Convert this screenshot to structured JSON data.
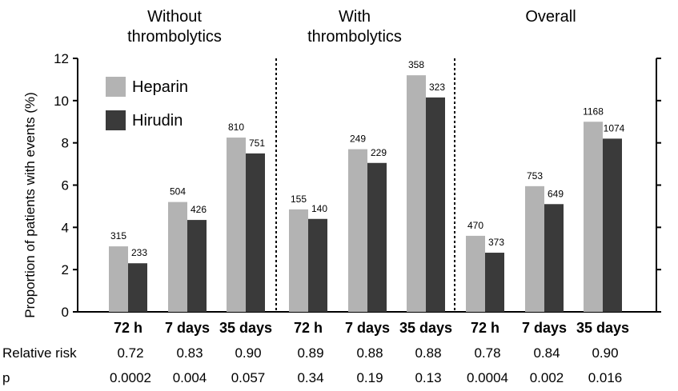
{
  "chart_data": {
    "type": "bar",
    "ylabel": "Proportion of patients with events (%)",
    "ylim": [
      0,
      12
    ],
    "yticks": [
      "0",
      "2",
      "4",
      "6",
      "8",
      "10",
      "12"
    ],
    "legend_position": "top-left",
    "series": [
      {
        "name": "Heparin",
        "color": "#b3b3b3"
      },
      {
        "name": "Hirudin",
        "color": "#3a3a3a"
      }
    ],
    "groups": [
      {
        "title_lines": [
          "Without",
          "thrombolytics"
        ],
        "categories": [
          {
            "label": "72 h",
            "values": [
              3.1,
              2.3
            ],
            "counts": [
              "315",
              "233"
            ],
            "relative_risk": "0.72",
            "p": "0.0002"
          },
          {
            "label": "7 days",
            "values": [
              5.2,
              4.35
            ],
            "counts": [
              "504",
              "426"
            ],
            "relative_risk": "0.83",
            "p": "0.004"
          },
          {
            "label": "35 days",
            "values": [
              8.25,
              7.5
            ],
            "counts": [
              "810",
              "751"
            ],
            "relative_risk": "0.90",
            "p": "0.057"
          }
        ]
      },
      {
        "title_lines": [
          "With",
          "thrombolytics"
        ],
        "categories": [
          {
            "label": "72 h",
            "values": [
              4.85,
              4.4
            ],
            "counts": [
              "155",
              "140"
            ],
            "relative_risk": "0.89",
            "p": "0.34"
          },
          {
            "label": "7 days",
            "values": [
              7.7,
              7.05
            ],
            "counts": [
              "249",
              "229"
            ],
            "relative_risk": "0.88",
            "p": "0.19"
          },
          {
            "label": "35 days",
            "values": [
              11.2,
              10.15
            ],
            "counts": [
              "358",
              "323"
            ],
            "relative_risk": "0.88",
            "p": "0.13"
          }
        ]
      },
      {
        "title_lines": [
          "Overall"
        ],
        "categories": [
          {
            "label": "72 h",
            "values": [
              3.6,
              2.8
            ],
            "counts": [
              "470",
              "373"
            ],
            "relative_risk": "0.78",
            "p": "0.0004"
          },
          {
            "label": "7 days",
            "values": [
              5.95,
              5.1
            ],
            "counts": [
              "753",
              "649"
            ],
            "relative_risk": "0.84",
            "p": "0.002"
          },
          {
            "label": "35 days",
            "values": [
              9.0,
              8.2
            ],
            "counts": [
              "1168",
              "1074"
            ],
            "relative_risk": "0.90",
            "p": "0.016"
          }
        ]
      }
    ],
    "row_labels": {
      "relative_risk": "Relative risk",
      "p": "p"
    }
  }
}
